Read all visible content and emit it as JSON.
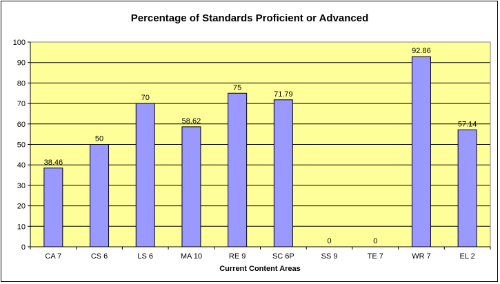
{
  "chart_data": {
    "type": "bar",
    "title": "Percentage of Standards Proficient or Advanced",
    "xlabel": "Current Content Areas",
    "ylabel": "",
    "categories": [
      "CA 7",
      "CS 6",
      "LS 6",
      "MA 10",
      "RE 9",
      "SC 6P",
      "SS 9",
      "TE 7",
      "WR 7",
      "EL 2"
    ],
    "values": [
      38.46,
      50,
      70,
      58.62,
      75,
      71.79,
      0,
      0,
      92.86,
      57.14
    ],
    "data_labels": [
      "38.46",
      "50",
      "70",
      "58.62",
      "75",
      "71.79",
      "0",
      "0",
      "92.86",
      "57.14"
    ],
    "ylim": [
      0,
      100
    ],
    "yticks": [
      0,
      10,
      20,
      30,
      40,
      50,
      60,
      70,
      80,
      90,
      100
    ],
    "grid": true,
    "legend": false,
    "colors": {
      "plot_background": "#ffff99",
      "bar_fill": "#9999ff",
      "bar_stroke": "#000000",
      "gridline": "#000000"
    }
  }
}
